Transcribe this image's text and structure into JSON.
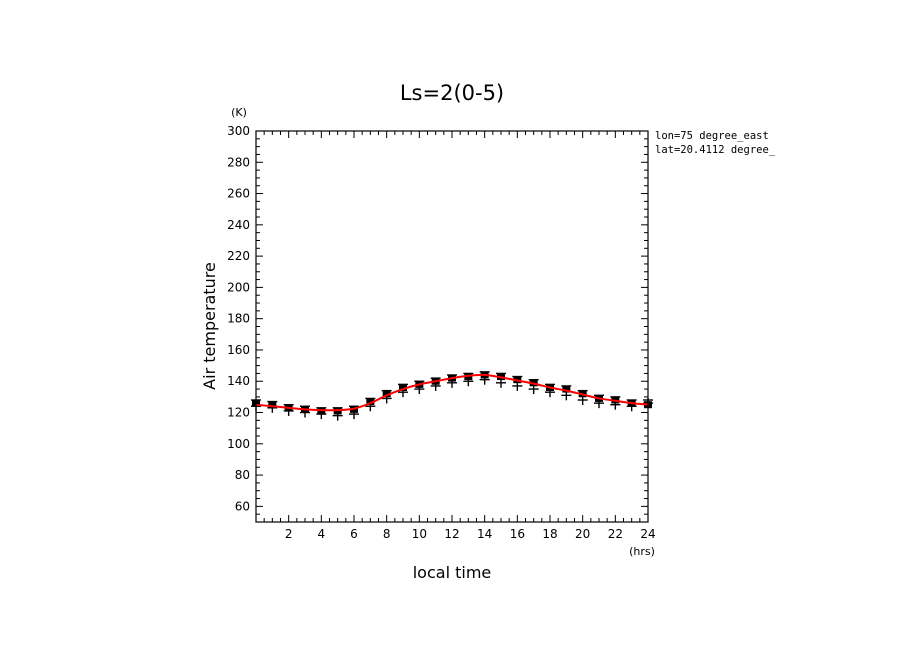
{
  "chart_data": {
    "type": "scatter",
    "title": "Ls=2(0-5)",
    "xlabel": "local time",
    "ylabel": "Air temperature",
    "x_unit": "(hrs)",
    "y_unit": "(K)",
    "xlim": [
      0,
      24
    ],
    "ylim": [
      50,
      300
    ],
    "x_ticks": [
      2,
      4,
      6,
      8,
      10,
      12,
      14,
      16,
      18,
      20,
      22,
      24
    ],
    "y_ticks": [
      60,
      80,
      100,
      120,
      140,
      160,
      180,
      200,
      220,
      240,
      260,
      280,
      300
    ],
    "grid": false,
    "annotations": [
      "lon=75 degree_east",
      "lat=20.4112 degree_"
    ],
    "x": [
      0,
      1,
      2,
      3,
      4,
      5,
      6,
      7,
      8,
      9,
      10,
      11,
      12,
      13,
      14,
      15,
      16,
      17,
      18,
      19,
      20,
      21,
      22,
      23,
      24
    ],
    "series": [
      {
        "marker": "square",
        "color": "#000000",
        "values": [
          126,
          125,
          123,
          122,
          121,
          121,
          122,
          127,
          132,
          136,
          138,
          140,
          142,
          143,
          144,
          143,
          141,
          139,
          136,
          135,
          132,
          129,
          128,
          126,
          125
        ]
      },
      {
        "marker": "plus",
        "color": "#000000",
        "values": [
          124,
          123,
          121,
          120,
          119,
          118,
          119,
          124,
          129,
          133,
          135,
          137,
          139,
          140,
          141,
          139,
          137,
          135,
          133,
          131,
          128,
          126,
          125,
          124,
          126
        ]
      },
      {
        "marker": "dash",
        "color": "#000000",
        "values": [
          128,
          127,
          125,
          124,
          123,
          123,
          124,
          129,
          134,
          138,
          140,
          142,
          144,
          145,
          146,
          145,
          143,
          141,
          138,
          137,
          134,
          131,
          130,
          128,
          128
        ]
      },
      {
        "marker": "line",
        "color": "#ff0000",
        "values": [
          125,
          124,
          123,
          122,
          121.5,
          121.5,
          122.5,
          126,
          131,
          135,
          138,
          140,
          142,
          143.5,
          144,
          142.5,
          140.5,
          138.5,
          136,
          134,
          131.5,
          129,
          127.5,
          126,
          125
        ]
      }
    ]
  }
}
